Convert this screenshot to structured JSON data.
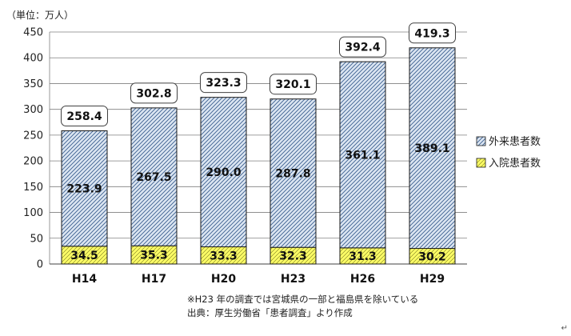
{
  "chart_data": {
    "type": "bar",
    "stacked": true,
    "unit_label": "（単位：万人）",
    "categories": [
      "H14",
      "H17",
      "H20",
      "H23",
      "H26",
      "H29"
    ],
    "series": [
      {
        "name": "入院患者数",
        "values": [
          34.5,
          35.3,
          33.3,
          32.3,
          31.3,
          30.2
        ],
        "color": "#ffff66",
        "pattern": "diagonal-yellow"
      },
      {
        "name": "外来患者数",
        "values": [
          223.9,
          267.5,
          290.0,
          287.8,
          361.1,
          389.1
        ],
        "color": "#c5d9f1",
        "pattern": "diagonal-blue"
      }
    ],
    "totals": [
      258.4,
      302.8,
      323.3,
      320.1,
      392.4,
      419.3
    ],
    "ylim": [
      0,
      450
    ],
    "yticks": [
      0,
      50,
      100,
      150,
      200,
      250,
      300,
      350,
      400,
      450
    ],
    "grid": true,
    "legend_position": "right",
    "legend_order": [
      "外来患者数",
      "入院患者数"
    ]
  },
  "notes": {
    "note1": "※H23 年の調査では宮城県の一部と福島県を除いている",
    "note2": "出典：厚生労働省「患者調査」より作成"
  },
  "return_mark": "↵"
}
